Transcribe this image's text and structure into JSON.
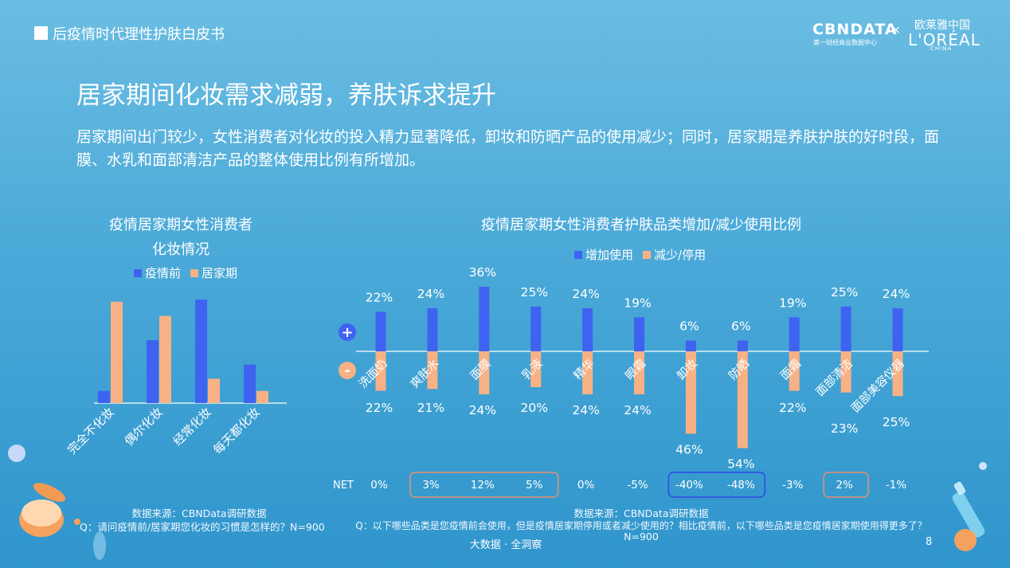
{
  "header": {
    "title": "后疫情时代理性护肤白皮书"
  },
  "brand": {
    "cbndata": "CBNDATA",
    "cbndata_sub": "第一财经商业数据中心",
    "cross": "×",
    "loreal_cn": "欧莱雅中国",
    "loreal": "L'ORÉAL",
    "loreal_china": "CHINA"
  },
  "headline": "居家期间化妆需求减弱，养肤诉求提升",
  "description": "居家期间出门较少，女性消费者对化妆的投入精力显著降低，卸妆和防晒产品的使用减少；同时，居家期是养肤护肤的好时段，面膜、水乳和面部清洁产品的整体使用比例有所增加。",
  "left_chart": {
    "title_line1": "疫情居家期女性消费者",
    "title_line2": "化妆情况",
    "source": "数据来源：CBNData调研数据",
    "question": "Q：请问疫情前/居家期您化妆的习惯是怎样的？N=900"
  },
  "right_chart": {
    "title": "疫情居家期女性消费者护肤品类增加/减少使用比例",
    "plus_sign": "+",
    "minus_sign": "-",
    "net_label": "NET",
    "source": "数据来源：CBNData调研数据",
    "question_line1": "Q：以下哪些品类是您疫情前会使用，但是疫情居家期停用或者减少使用的？相比疫情前，以下哪些品类是您疫情居家期使用得更多了？",
    "question_line2": "N=900"
  },
  "footer": {
    "text": "大数据 · 全洞察",
    "page": "8"
  },
  "colors": {
    "blue": "#3f63f1",
    "orange": "#f8b184",
    "highlight_orange": "#e8906a",
    "highlight_blue": "#3147e6"
  },
  "chart_data": [
    {
      "type": "bar",
      "title": "疫情居家期女性消费者化妆情况",
      "categories": [
        "完全不化妆",
        "偶尔化妆",
        "经常化妆",
        "每天都化妆"
      ],
      "series": [
        {
          "name": "疫情前",
          "values": [
            6,
            31,
            51,
            19
          ]
        },
        {
          "name": "居家期",
          "values": [
            50,
            43,
            12,
            6
          ]
        }
      ],
      "ylim": [
        0,
        55
      ],
      "labels_shown": false
    },
    {
      "type": "bar",
      "title": "疫情居家期女性消费者护肤品类增加/减少使用比例",
      "categories": [
        "洗面奶",
        "爽肤水",
        "面膜",
        "乳液",
        "精华",
        "眼霜",
        "卸妆",
        "防晒",
        "面霜",
        "面部清洁",
        "面部美容仪器"
      ],
      "series": [
        {
          "name": "增加使用",
          "values": [
            22,
            24,
            36,
            25,
            24,
            19,
            6,
            6,
            19,
            25,
            24
          ],
          "labels": [
            "22%",
            "24%",
            "36%",
            "25%",
            "24%",
            "19%",
            "6%",
            "6%",
            "19%",
            "25%",
            "24%"
          ]
        },
        {
          "name": "减少/停用",
          "values": [
            22,
            21,
            24,
            20,
            24,
            24,
            46,
            54,
            22,
            23,
            25
          ],
          "labels": [
            "22%",
            "21%",
            "24%",
            "20%",
            "24%",
            "24%",
            "46%",
            "54%",
            "22%",
            "23%",
            "25%"
          ]
        }
      ],
      "net": [
        "0%",
        "3%",
        "12%",
        "5%",
        "0%",
        "-5%",
        "-40%",
        "-48%",
        "-3%",
        "2%",
        "-1%"
      ],
      "highlight_groups": [
        {
          "from": 1,
          "to": 3,
          "color": "orange"
        },
        {
          "from": 6,
          "to": 7,
          "color": "blue"
        },
        {
          "from": 9,
          "to": 9,
          "color": "orange"
        }
      ],
      "unit": "%"
    }
  ]
}
